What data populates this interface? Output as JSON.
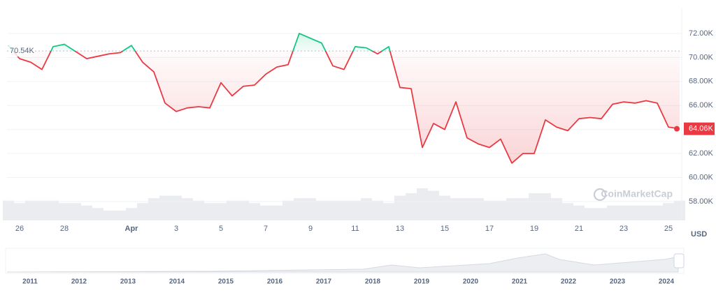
{
  "chart_data": {
    "type": "line",
    "categories": [
      null,
      "26",
      null,
      null,
      null,
      "28",
      null,
      null,
      null,
      null,
      null,
      "Apr",
      null,
      null,
      null,
      "3",
      null,
      null,
      null,
      "5",
      null,
      null,
      null,
      "7",
      null,
      null,
      null,
      "9",
      null,
      null,
      null,
      "11",
      null,
      null,
      null,
      "13",
      null,
      null,
      null,
      "15",
      null,
      null,
      null,
      "17",
      null,
      null,
      null,
      "19",
      null,
      null,
      null,
      "21",
      null,
      null,
      null,
      "23",
      null,
      null,
      null,
      "25",
      null
    ],
    "series": [
      {
        "values": [
          71000,
          69900,
          69600,
          69000,
          70900,
          71100,
          70500,
          69900,
          70100,
          70300,
          70400,
          71000,
          69600,
          68800,
          66200,
          65500,
          65800,
          65900,
          65800,
          67900,
          66800,
          67600,
          67700,
          68600,
          69200,
          69400,
          72000,
          71600,
          71200,
          69300,
          69000,
          70900,
          70800,
          70300,
          70900,
          67500,
          67400,
          62500,
          64500,
          64000,
          66300,
          63300,
          62800,
          62500,
          63200,
          61200,
          62000,
          62000,
          64800,
          64200,
          63900,
          64900,
          65000,
          64900,
          66100,
          66300,
          66200,
          66400,
          66200,
          64200,
          64060
        ]
      }
    ],
    "volume": [
      8,
      7,
      8,
      8,
      8,
      7,
      7,
      6,
      5,
      4,
      4,
      5,
      7,
      9,
      10,
      10,
      9,
      8,
      7,
      7,
      8,
      8,
      7,
      6,
      6,
      8,
      9,
      9,
      8,
      8,
      8,
      8,
      9,
      8,
      7,
      10,
      11,
      13,
      12,
      10,
      9,
      9,
      9,
      8,
      8,
      9,
      9,
      11,
      11,
      9,
      7,
      6,
      5,
      5,
      6,
      6,
      6,
      6,
      6,
      7,
      8
    ],
    "baseline": {
      "value": 70540,
      "label": "70.54K"
    },
    "end_label": "64.06K",
    "up_color": "#16c784",
    "down_color": "#ea3943",
    "ylim": [
      56430,
      74090
    ],
    "yticks": [
      {
        "value": 58000,
        "label": "58.00K"
      },
      {
        "value": 60000,
        "label": "60.00K"
      },
      {
        "value": 62000,
        "label": "62.00K"
      },
      {
        "value": 64000,
        "label": "64.00K"
      },
      {
        "value": 66000,
        "label": "66.00K"
      },
      {
        "value": 68000,
        "label": "68.00K"
      },
      {
        "value": 70000,
        "label": "70.00K"
      },
      {
        "value": 72000,
        "label": "72.00K"
      }
    ],
    "y_axis_label": "USD",
    "watermark": "CoinMarketCap",
    "navigator_years": [
      "2011",
      "2012",
      "2013",
      "2014",
      "2015",
      "2016",
      "2017",
      "2018",
      "2019",
      "2020",
      "2021",
      "2022",
      "2023",
      "2024"
    ],
    "grid": true
  }
}
